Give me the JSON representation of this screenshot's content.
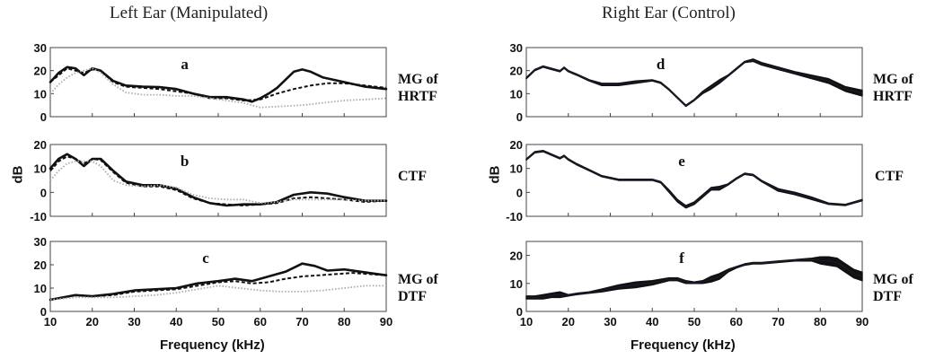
{
  "column_titles": {
    "left": "Left Ear (Manipulated)",
    "right": "Right Ear (Control)"
  },
  "row_labels": {
    "top": [
      "MG of",
      "HRTF"
    ],
    "middle": [
      "CTF"
    ],
    "bottom": [
      "MG of",
      "DTF"
    ]
  },
  "ylabel": "dB",
  "xlabel": "Frequency (kHz)",
  "colors": {
    "solid": "#111111",
    "dashed": "#111111",
    "dotted": "#aaaaaa",
    "control": "#111111",
    "control_edge": "#2a2a6a"
  },
  "chart_data": [
    {
      "id": "a",
      "type": "line",
      "panel_letter": "a",
      "xlim": [
        10,
        90
      ],
      "ylim": [
        0,
        30
      ],
      "xticks": [
        10,
        20,
        30,
        40,
        50,
        60,
        70,
        80,
        90
      ],
      "yticks": [
        0,
        10,
        20,
        30
      ],
      "series": [
        {
          "style": "solid",
          "x": [
            10,
            12,
            14,
            16,
            18,
            20,
            22,
            25,
            28,
            32,
            36,
            40,
            44,
            48,
            52,
            56,
            58,
            60,
            62,
            64,
            66,
            68,
            70,
            72,
            75,
            80,
            85,
            90
          ],
          "y": [
            15,
            19,
            21.5,
            21,
            18,
            21,
            20,
            15.5,
            13.5,
            13,
            12.8,
            12,
            10,
            8.5,
            8.5,
            7.5,
            6.5,
            8,
            10,
            12.5,
            16,
            19.5,
            20.5,
            19.5,
            17,
            15,
            13,
            12
          ]
        },
        {
          "style": "dashed",
          "x": [
            10,
            12,
            14,
            16,
            18,
            20,
            22,
            25,
            28,
            32,
            36,
            40,
            44,
            48,
            52,
            56,
            60,
            64,
            68,
            72,
            76,
            80,
            85,
            90
          ],
          "y": [
            15,
            18,
            21,
            20,
            19,
            20.5,
            20,
            15,
            13,
            12.5,
            12,
            11,
            10,
            8,
            8,
            7,
            7.5,
            10,
            12,
            13.5,
            14.5,
            14.5,
            13.5,
            12.5
          ]
        },
        {
          "style": "dotted",
          "x": [
            10,
            12,
            14,
            16,
            18,
            20,
            22,
            25,
            28,
            32,
            36,
            40,
            44,
            48,
            52,
            56,
            60,
            65,
            70,
            75,
            80,
            85,
            90
          ],
          "y": [
            10,
            14,
            17,
            19,
            20,
            21,
            19,
            14,
            10.5,
            9.5,
            9.5,
            9,
            9,
            8,
            7,
            6,
            4,
            4.5,
            5,
            6,
            7,
            7.5,
            8
          ]
        }
      ]
    },
    {
      "id": "b",
      "type": "line",
      "panel_letter": "b",
      "xlim": [
        10,
        90
      ],
      "ylim": [
        -10,
        20
      ],
      "xticks": [
        10,
        20,
        30,
        40,
        50,
        60,
        70,
        80,
        90
      ],
      "yticks": [
        -10,
        0,
        10,
        20
      ],
      "series": [
        {
          "style": "solid",
          "x": [
            10,
            12,
            14,
            16,
            18,
            20,
            22,
            25,
            28,
            32,
            36,
            40,
            44,
            48,
            52,
            56,
            60,
            64,
            68,
            72,
            76,
            80,
            85,
            90
          ],
          "y": [
            10,
            14,
            16,
            14,
            11,
            14,
            14,
            9,
            4.5,
            3,
            3,
            1.5,
            -2,
            -4.5,
            -5.5,
            -5,
            -5,
            -4,
            -1,
            0,
            -0.5,
            -2,
            -3.5,
            -3.5
          ]
        },
        {
          "style": "dashed",
          "x": [
            10,
            12,
            14,
            16,
            18,
            20,
            22,
            25,
            28,
            32,
            36,
            40,
            44,
            48,
            52,
            56,
            60,
            64,
            68,
            72,
            76,
            80,
            85,
            90
          ],
          "y": [
            9,
            13,
            15,
            14,
            12,
            14,
            13.5,
            8.5,
            4,
            2.5,
            2.5,
            1,
            -2.5,
            -4.5,
            -5,
            -5.5,
            -5,
            -4.5,
            -2.5,
            -2,
            -2.5,
            -3,
            -4,
            -3.5
          ]
        },
        {
          "style": "dotted",
          "x": [
            10,
            12,
            14,
            16,
            18,
            20,
            22,
            25,
            28,
            32,
            36,
            40,
            44,
            48,
            52,
            56,
            60,
            64,
            68,
            72,
            76,
            80,
            85,
            90
          ],
          "y": [
            5,
            9,
            12,
            13,
            13,
            13,
            11,
            5,
            3,
            2.5,
            3,
            2,
            -1,
            -2.5,
            -3,
            -3,
            -4.5,
            -4,
            -3,
            -3,
            -3,
            -3,
            -3.5,
            -3.5
          ]
        }
      ]
    },
    {
      "id": "c",
      "type": "line",
      "panel_letter": "c",
      "xlim": [
        10,
        90
      ],
      "ylim": [
        0,
        30
      ],
      "xticks": [
        10,
        20,
        30,
        40,
        50,
        60,
        70,
        80,
        90
      ],
      "yticks": [
        0,
        10,
        20,
        30
      ],
      "series": [
        {
          "style": "solid",
          "x": [
            10,
            13,
            16,
            20,
            25,
            30,
            35,
            40,
            45,
            50,
            54,
            58,
            62,
            66,
            70,
            73,
            76,
            80,
            84,
            88,
            90
          ],
          "y": [
            5,
            6,
            7,
            6.5,
            7.5,
            9,
            9.5,
            10,
            12,
            13,
            14,
            13,
            15,
            17,
            20.5,
            19.5,
            17.5,
            18,
            17,
            16,
            15.5
          ]
        },
        {
          "style": "dashed",
          "x": [
            10,
            13,
            16,
            20,
            25,
            30,
            35,
            40,
            45,
            50,
            54,
            58,
            62,
            66,
            70,
            74,
            78,
            82,
            86,
            90
          ],
          "y": [
            5,
            6,
            7,
            6.5,
            7,
            8.5,
            9,
            9.5,
            11,
            12.5,
            13,
            12,
            12.5,
            14,
            15,
            15.5,
            16,
            16.5,
            16,
            15.5
          ]
        },
        {
          "style": "dotted",
          "x": [
            10,
            13,
            16,
            20,
            25,
            30,
            35,
            40,
            45,
            50,
            55,
            60,
            65,
            70,
            75,
            80,
            85,
            90
          ],
          "y": [
            5,
            5.5,
            6,
            6,
            6,
            6.5,
            7,
            8,
            9.5,
            11,
            10,
            9,
            8.5,
            8.5,
            9,
            10,
            11,
            11
          ]
        }
      ]
    },
    {
      "id": "d",
      "type": "area",
      "panel_letter": "d",
      "xlim": [
        10,
        90
      ],
      "ylim": [
        0,
        30
      ],
      "xticks": [
        10,
        20,
        30,
        40,
        50,
        60,
        70,
        80,
        90
      ],
      "yticks": [
        0,
        10,
        20,
        30
      ],
      "x": [
        10,
        12,
        14,
        16,
        18,
        19,
        20,
        22,
        25,
        28,
        32,
        36,
        40,
        42,
        44,
        46,
        48,
        50,
        52,
        54,
        56,
        58,
        60,
        62,
        64,
        66,
        70,
        74,
        78,
        82,
        86,
        90
      ],
      "upper": [
        17,
        20.5,
        22,
        21,
        20,
        21.5,
        20,
        18.5,
        16,
        14.5,
        14.5,
        15.5,
        16,
        15,
        12,
        8.5,
        5,
        7.5,
        11,
        13.5,
        16,
        18,
        21,
        24,
        25,
        23.5,
        21.5,
        19.5,
        18,
        16.5,
        13,
        11.5
      ],
      "lower": [
        16.5,
        20,
        21.5,
        20.5,
        19.5,
        21,
        19.5,
        18,
        15.5,
        13.5,
        13.5,
        14.5,
        15.5,
        14.5,
        11.5,
        8,
        4.5,
        7,
        10,
        12,
        14.5,
        17.5,
        20.5,
        23.5,
        24,
        22.5,
        20.5,
        18.5,
        16.5,
        14.5,
        11,
        9
      ]
    },
    {
      "id": "e",
      "type": "area",
      "panel_letter": "e",
      "xlim": [
        10,
        90
      ],
      "ylim": [
        -10,
        20
      ],
      "xticks": [
        10,
        20,
        30,
        40,
        50,
        60,
        70,
        80,
        90
      ],
      "yticks": [
        -10,
        0,
        10,
        20
      ],
      "x": [
        10,
        12,
        14,
        16,
        18,
        19,
        20,
        22,
        25,
        28,
        32,
        36,
        40,
        42,
        44,
        46,
        48,
        50,
        52,
        54,
        56,
        58,
        60,
        62,
        64,
        66,
        70,
        74,
        78,
        82,
        86,
        90
      ],
      "upper": [
        14,
        17,
        17.5,
        16,
        14.5,
        15.5,
        14,
        12,
        9.5,
        7,
        5.5,
        5.5,
        5.5,
        4.5,
        1,
        -3,
        -5.5,
        -4,
        -1,
        2,
        2.5,
        3.5,
        6,
        8,
        7.5,
        5,
        1.5,
        0,
        -2,
        -4.5,
        -5,
        -3
      ],
      "lower": [
        13.5,
        16.5,
        17,
        15.5,
        14,
        15,
        13.5,
        11.5,
        9,
        6.5,
        5,
        5,
        5,
        4,
        0,
        -4,
        -6.5,
        -5,
        -2,
        1,
        1,
        3,
        5.5,
        7.5,
        7,
        4.5,
        0.5,
        -1,
        -3,
        -5,
        -5.5,
        -3.5
      ]
    },
    {
      "id": "f",
      "type": "area",
      "panel_letter": "f",
      "xlim": [
        10,
        90
      ],
      "ylim": [
        0,
        25
      ],
      "xticks": [
        10,
        20,
        30,
        40,
        50,
        60,
        70,
        80,
        90
      ],
      "yticks": [
        0,
        10,
        20
      ],
      "x": [
        10,
        12,
        14,
        16,
        18,
        20,
        22,
        25,
        28,
        32,
        36,
        40,
        44,
        46,
        48,
        50,
        52,
        54,
        56,
        58,
        60,
        62,
        64,
        66,
        70,
        74,
        78,
        80,
        82,
        84,
        86,
        88,
        90
      ],
      "upper": [
        5.5,
        5.5,
        6,
        6.5,
        7,
        6,
        6.5,
        7,
        8,
        9.5,
        10.5,
        11,
        12,
        12,
        11,
        10.5,
        11,
        12.5,
        13.5,
        15,
        16,
        17,
        17.5,
        17.5,
        18,
        18.5,
        19,
        19.5,
        19.5,
        19,
        17,
        15,
        14
      ],
      "lower": [
        4.5,
        4.5,
        4.5,
        5,
        5,
        5.5,
        6,
        6.5,
        7,
        8,
        8.5,
        9.5,
        11,
        11,
        10,
        10,
        10,
        10.5,
        11.5,
        14,
        15.5,
        16.5,
        17,
        17,
        17.5,
        18,
        18,
        17,
        16.5,
        16,
        14,
        12,
        11
      ]
    }
  ]
}
